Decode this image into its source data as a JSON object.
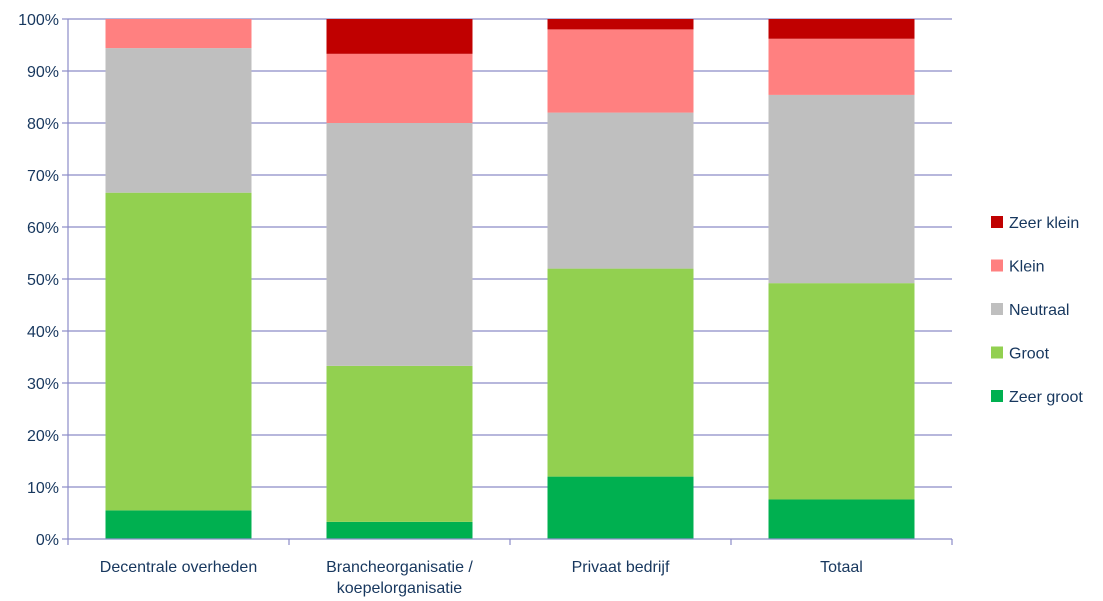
{
  "chart_data": {
    "type": "bar",
    "stacked": true,
    "percent": true,
    "categories": [
      [
        "Decentrale overheden"
      ],
      [
        "Brancheorganisatie /",
        "koepelorganisatie"
      ],
      [
        "Privaat bedrijf"
      ],
      [
        "Totaal"
      ]
    ],
    "series": [
      {
        "name": "Zeer groot",
        "color": "#00b050",
        "values": [
          5.5,
          3.3,
          12.0,
          7.6
        ]
      },
      {
        "name": "Groot",
        "color": "#92d050",
        "values": [
          61.1,
          30.0,
          40.0,
          41.6
        ]
      },
      {
        "name": "Neutraal",
        "color": "#bfbfbf",
        "values": [
          27.8,
          46.7,
          30.0,
          36.2
        ]
      },
      {
        "name": "Klein",
        "color": "#ff8080",
        "values": [
          5.6,
          13.3,
          16.0,
          10.8
        ]
      },
      {
        "name": "Zeer klein",
        "color": "#c00000",
        "values": [
          0.0,
          6.7,
          2.0,
          3.8
        ]
      }
    ],
    "ylim": [
      0,
      100
    ],
    "yticks": [
      "0%",
      "10%",
      "20%",
      "30%",
      "40%",
      "50%",
      "60%",
      "70%",
      "80%",
      "90%",
      "100%"
    ],
    "grid": true,
    "legend_position": "right",
    "xlabel": "",
    "ylabel": "",
    "title": ""
  }
}
